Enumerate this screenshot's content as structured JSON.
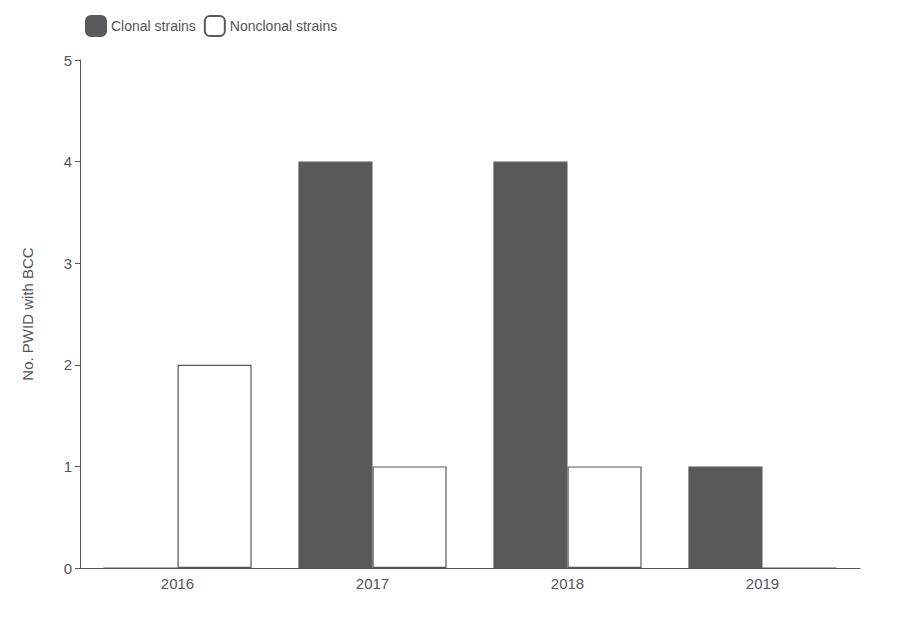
{
  "chart_data": {
    "type": "bar",
    "categories": [
      "2016",
      "2017",
      "2018",
      "2019"
    ],
    "series": [
      {
        "name": "Clonal strains",
        "color": "#595959",
        "values": [
          0,
          4,
          4,
          1
        ]
      },
      {
        "name": "Nonclonal strains",
        "color": "#ffffff",
        "values": [
          2,
          1,
          1,
          0
        ]
      }
    ],
    "ylabel": "No. PWID with BCC",
    "ylim": [
      0,
      5
    ],
    "yticks": [
      0,
      1,
      2,
      3,
      4,
      5
    ],
    "grid": false,
    "legend": "upper left"
  }
}
